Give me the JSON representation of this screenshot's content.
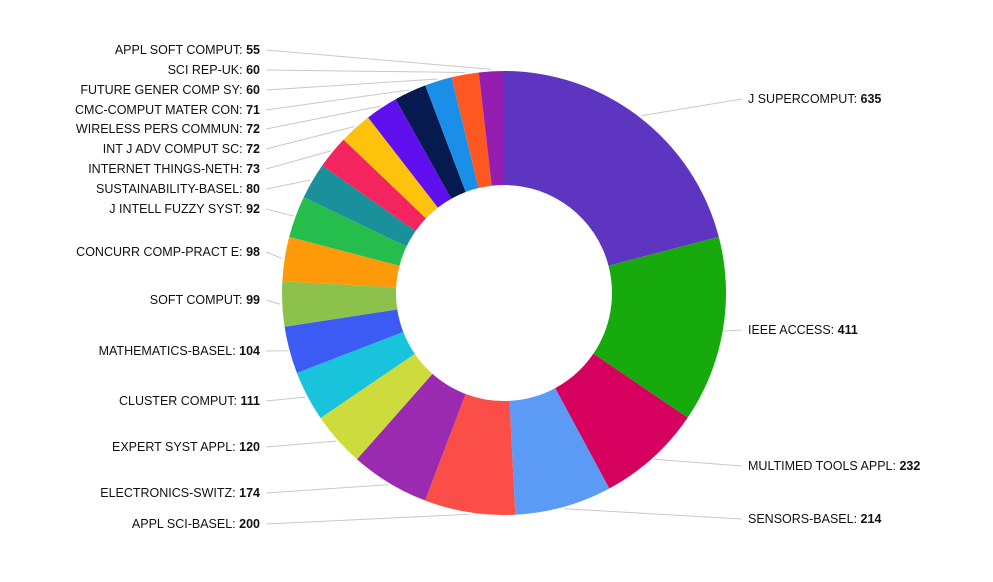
{
  "chart_data": {
    "type": "pie",
    "variant": "donut",
    "legend": "none",
    "series": [
      {
        "name": "J SUPERCOMPUT",
        "value": 635,
        "color": "#5e35c1"
      },
      {
        "name": "IEEE ACCESS",
        "value": 411,
        "color": "#17aa0c"
      },
      {
        "name": "MULTIMED TOOLS APPL",
        "value": 232,
        "color": "#d6015f"
      },
      {
        "name": "SENSORS-BASEL",
        "value": 214,
        "color": "#5b9bf5"
      },
      {
        "name": "APPL SCI-BASEL",
        "value": 200,
        "color": "#fc4e48"
      },
      {
        "name": "ELECTRONICS-SWITZ",
        "value": 174,
        "color": "#9a2aaf"
      },
      {
        "name": "EXPERT SYST APPL",
        "value": 120,
        "color": "#cddb3c"
      },
      {
        "name": "CLUSTER COMPUT",
        "value": 111,
        "color": "#19c3dc"
      },
      {
        "name": "MATHEMATICS-BASEL",
        "value": 104,
        "color": "#3c5bf4"
      },
      {
        "name": "SOFT COMPUT",
        "value": 99,
        "color": "#8cc24c"
      },
      {
        "name": "CONCURR COMP-PRACT E",
        "value": 98,
        "color": "#fe9a09"
      },
      {
        "name": "J INTELL FUZZY SYST",
        "value": 92,
        "color": "#25bd4c"
      },
      {
        "name": "SUSTAINABILITY-BASEL",
        "value": 80,
        "color": "#1a909a"
      },
      {
        "name": "INTERNET THINGS-NETH",
        "value": 73,
        "color": "#f3245e"
      },
      {
        "name": "INT J ADV COMPUT SC",
        "value": 72,
        "color": "#fdc20b"
      },
      {
        "name": "WIRELESS PERS COMMUN",
        "value": 72,
        "color": "#6010ee"
      },
      {
        "name": "CMC-COMPUT MATER CON",
        "value": 71,
        "color": "#061a4f"
      },
      {
        "name": "FUTURE GENER COMP SY",
        "value": 60,
        "color": "#1b8fe7"
      },
      {
        "name": "SCI REP-UK",
        "value": 60,
        "color": "#fe5822"
      },
      {
        "name": "APPL SOFT COMPUT",
        "value": 55,
        "color": "#951db0"
      }
    ]
  }
}
